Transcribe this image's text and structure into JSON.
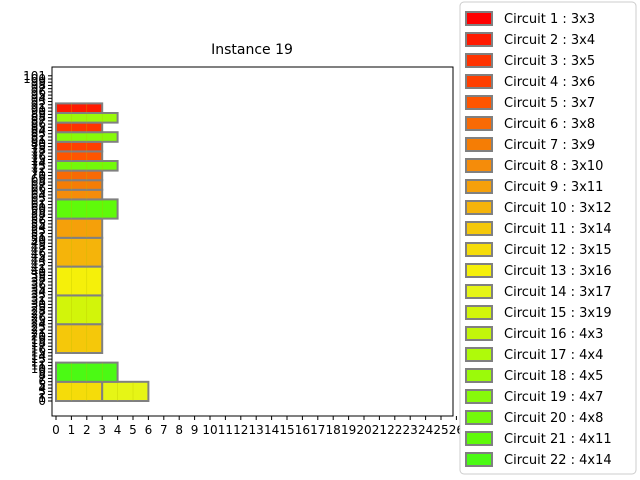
{
  "chart_data": {
    "type": "bar",
    "title": "Instance 19",
    "xlabel": "",
    "ylabel": "",
    "xlim": [
      0,
      26
    ],
    "ylim": [
      0,
      101
    ],
    "xticks": [
      0,
      1,
      2,
      3,
      4,
      5,
      6,
      7,
      8,
      9,
      10,
      11,
      12,
      13,
      14,
      15,
      16,
      17,
      18,
      19,
      20,
      21,
      22,
      23,
      24,
      25,
      26
    ],
    "legend_position": "right",
    "bar_edge_color": "#808080",
    "circuits": [
      {
        "label": "Circuit 1 : 3x3",
        "w": 3,
        "h": 3,
        "color": "#ff0000",
        "x": 0,
        "y": 98
      },
      {
        "label": "Circuit 2 : 3x4",
        "w": 3,
        "h": 4,
        "color": "#ff1a00",
        "x": 0,
        "y": 94
      },
      {
        "label": "Circuit 3 : 3x5",
        "w": 3,
        "h": 5,
        "color": "#ff3300",
        "x": 0,
        "y": 89
      },
      {
        "label": "Circuit 4 : 3x6",
        "w": 3,
        "h": 6,
        "color": "#ff3f00",
        "x": 0,
        "y": 83
      },
      {
        "label": "Circuit 5 : 3x7",
        "w": 3,
        "h": 7,
        "color": "#ff5500",
        "x": 0,
        "y": 76
      },
      {
        "label": "Circuit 6 : 3x8",
        "w": 3,
        "h": 8,
        "color": "#f86a05",
        "x": 0,
        "y": 68
      },
      {
        "label": "Circuit 7 : 3x9",
        "w": 3,
        "h": 9,
        "color": "#f57d05",
        "x": 0,
        "y": 59
      },
      {
        "label": "Circuit 8 : 3x10",
        "w": 3,
        "h": 10,
        "color": "#f58c0a",
        "x": 0,
        "y": 49
      },
      {
        "label": "Circuit 9 : 3x11",
        "w": 3,
        "h": 11,
        "color": "#f5a00a",
        "x": 0,
        "y": 38
      },
      {
        "label": "Circuit 10 : 3x12",
        "w": 3,
        "h": 12,
        "color": "#f5b40a",
        "x": 0,
        "y": 26
      },
      {
        "label": "Circuit 11 : 3x14",
        "w": 3,
        "h": 14,
        "color": "#f5c80a",
        "x": 0,
        "y": 12
      },
      {
        "label": "Circuit 12 : 3x15",
        "w": 3,
        "h": 15,
        "color": "#f5dc0a",
        "x": 0,
        "y": -3
      },
      {
        "label": "Circuit 13 : 3x16",
        "w": 3,
        "h": 16,
        "color": "#f5f00a",
        "x": 0,
        "y": -19
      },
      {
        "label": "Circuit 14 : 3x17",
        "w": 3,
        "h": 17,
        "color": "#e6f516",
        "x": 0,
        "y": -36
      },
      {
        "label": "Circuit 15 : 3x19",
        "w": 3,
        "h": 19,
        "color": "#d2f50a",
        "x": 0,
        "y": -55
      },
      {
        "label": "Circuit 16 : 4x3",
        "w": 4,
        "h": 3,
        "color": "#c3f50a",
        "x": 0,
        "y": 101
      },
      {
        "label": "Circuit 17 : 4x4",
        "w": 4,
        "h": 4,
        "color": "#affa0a",
        "x": 0,
        "y": 97
      },
      {
        "label": "Circuit 18 : 4x5",
        "w": 4,
        "h": 5,
        "color": "#9bfa0a",
        "x": 0,
        "y": 92
      },
      {
        "label": "Circuit 19 : 4x7",
        "w": 4,
        "h": 7,
        "color": "#87fa0a",
        "x": 0,
        "y": 85
      },
      {
        "label": "Circuit 20 : 4x8",
        "w": 4,
        "h": 8,
        "color": "#73fa0a",
        "x": 0,
        "y": 77
      },
      {
        "label": "Circuit 21 : 4x11",
        "w": 4,
        "h": 11,
        "color": "#5ffa0a",
        "x": 0,
        "y": 66
      },
      {
        "label": "Circuit 22 : 4x14",
        "w": 4,
        "h": 14,
        "color": "#4bfa14",
        "x": 0,
        "y": 52
      }
    ]
  }
}
